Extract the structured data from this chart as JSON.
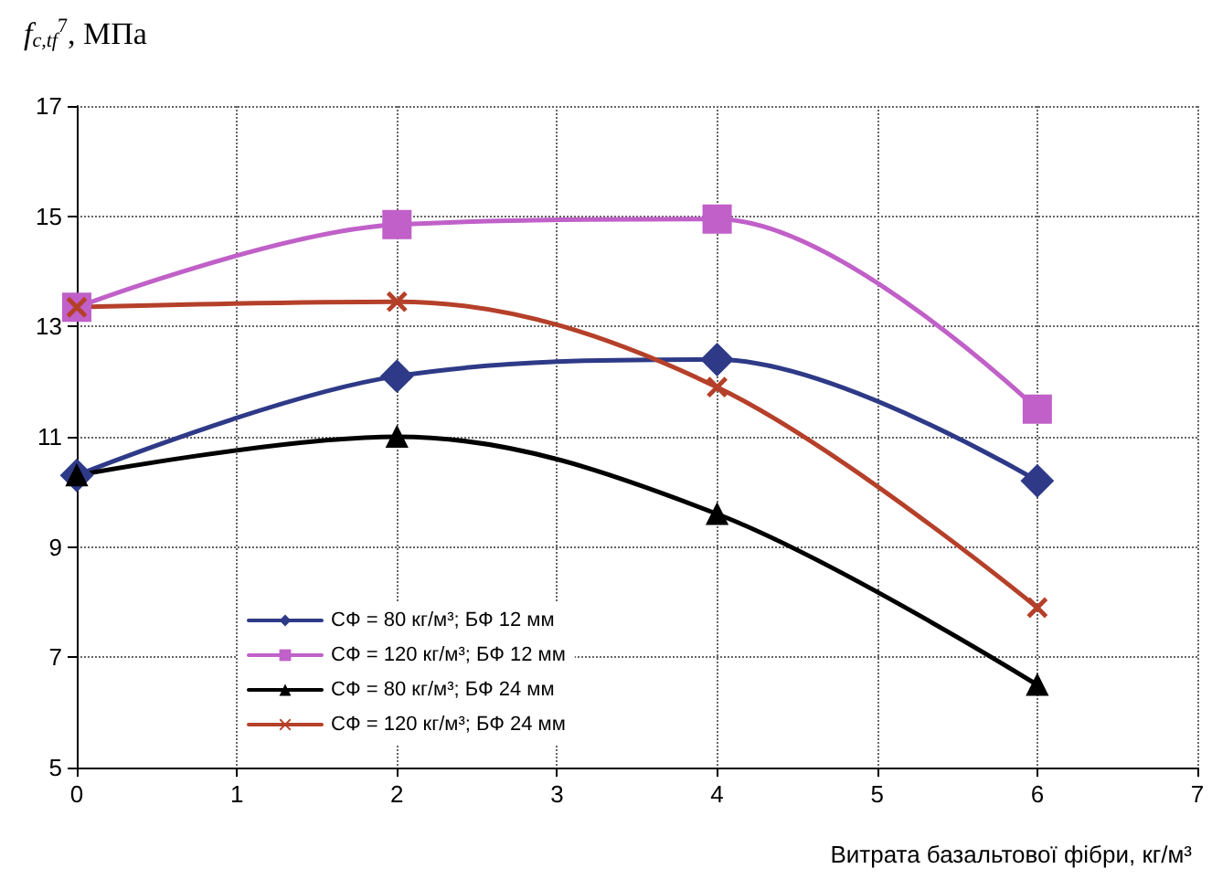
{
  "chart_data": {
    "type": "line",
    "ylabel": "f$_{c,tf}$$^{7}$, МПа",
    "xlabel": "Витрата базальтової фібри, кг/м³",
    "x": [
      0,
      2,
      4,
      6
    ],
    "series": [
      {
        "name": "СФ = 80 кг/м³; БФ 12 мм",
        "color": "#2e3a87",
        "marker": "diamond",
        "values": [
          10.3,
          12.1,
          12.4,
          10.2
        ]
      },
      {
        "name": "СФ = 120 кг/м³; БФ 12 мм",
        "color": "#c060c8",
        "marker": "square",
        "values": [
          13.35,
          14.85,
          14.95,
          11.5
        ]
      },
      {
        "name": "СФ = 80 кг/м³; БФ 24 мм",
        "color": "#000000",
        "marker": "triangle",
        "values": [
          10.3,
          11.0,
          9.6,
          6.5
        ]
      },
      {
        "name": "СФ = 120 кг/м³; БФ 24 мм",
        "color": "#b5402a",
        "marker": "cross",
        "values": [
          13.35,
          13.45,
          11.9,
          7.9
        ]
      }
    ],
    "xlim": [
      0,
      7
    ],
    "xticks": [
      0,
      1,
      2,
      3,
      4,
      5,
      6,
      7
    ],
    "ylim": [
      5,
      17
    ],
    "yticks": [
      5,
      7,
      9,
      11,
      13,
      15,
      17
    ],
    "grid": true,
    "legend": "bottom left",
    "line_style": "solid"
  }
}
